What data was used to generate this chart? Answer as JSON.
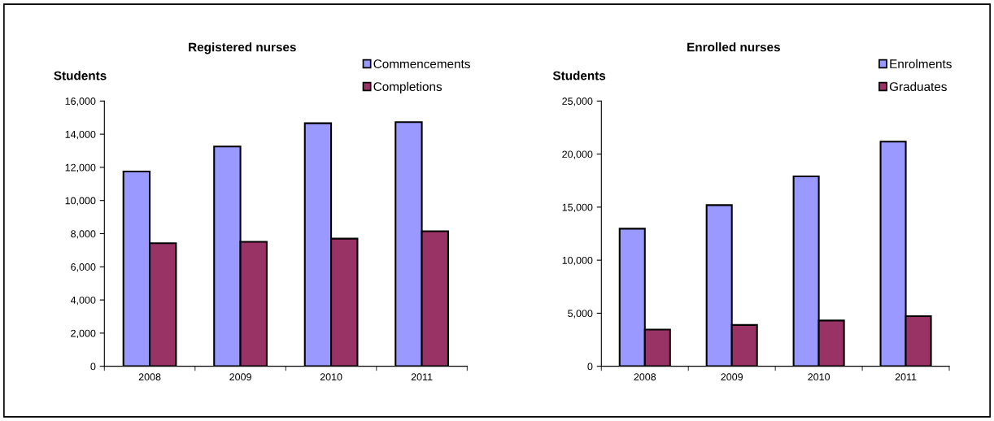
{
  "chart_data": [
    {
      "type": "bar",
      "title": "Registered nurses",
      "ylabel": "Students",
      "categories": [
        "2008",
        "2009",
        "2010",
        "2011"
      ],
      "series": [
        {
          "name": "Commencements",
          "color": "#9999ff",
          "values": [
            11750,
            13260,
            14660,
            14730
          ]
        },
        {
          "name": "Completions",
          "color": "#993366",
          "values": [
            7420,
            7510,
            7700,
            8150
          ]
        }
      ],
      "ylim": [
        0,
        16000
      ],
      "yticks": [
        {
          "value": 0,
          "label": "0"
        },
        {
          "value": 2000,
          "label": "2,000"
        },
        {
          "value": 4000,
          "label": "4,000"
        },
        {
          "value": 6000,
          "label": "6,000"
        },
        {
          "value": 8000,
          "label": "8,000"
        },
        {
          "value": 10000,
          "label": "10,000"
        },
        {
          "value": 12000,
          "label": "12,000"
        },
        {
          "value": 14000,
          "label": "14,000"
        },
        {
          "value": 16000,
          "label": "16,000"
        }
      ],
      "grid": false,
      "legend": "top right"
    },
    {
      "type": "bar",
      "title": "Enrolled nurses",
      "ylabel": "Students",
      "categories": [
        "2008",
        "2009",
        "2010",
        "2011"
      ],
      "series": [
        {
          "name": "Enrolments",
          "color": "#9999ff",
          "values": [
            12970,
            15190,
            17900,
            21170
          ]
        },
        {
          "name": "Graduates",
          "color": "#993366",
          "values": [
            3460,
            3890,
            4310,
            4720
          ]
        }
      ],
      "ylim": [
        0,
        25000
      ],
      "yticks": [
        {
          "value": 0,
          "label": "0"
        },
        {
          "value": 5000,
          "label": "5,000"
        },
        {
          "value": 10000,
          "label": "10,000"
        },
        {
          "value": 15000,
          "label": "15,000"
        },
        {
          "value": 20000,
          "label": "20,000"
        },
        {
          "value": 25000,
          "label": "25,000"
        }
      ],
      "grid": false,
      "legend": "top right"
    }
  ]
}
